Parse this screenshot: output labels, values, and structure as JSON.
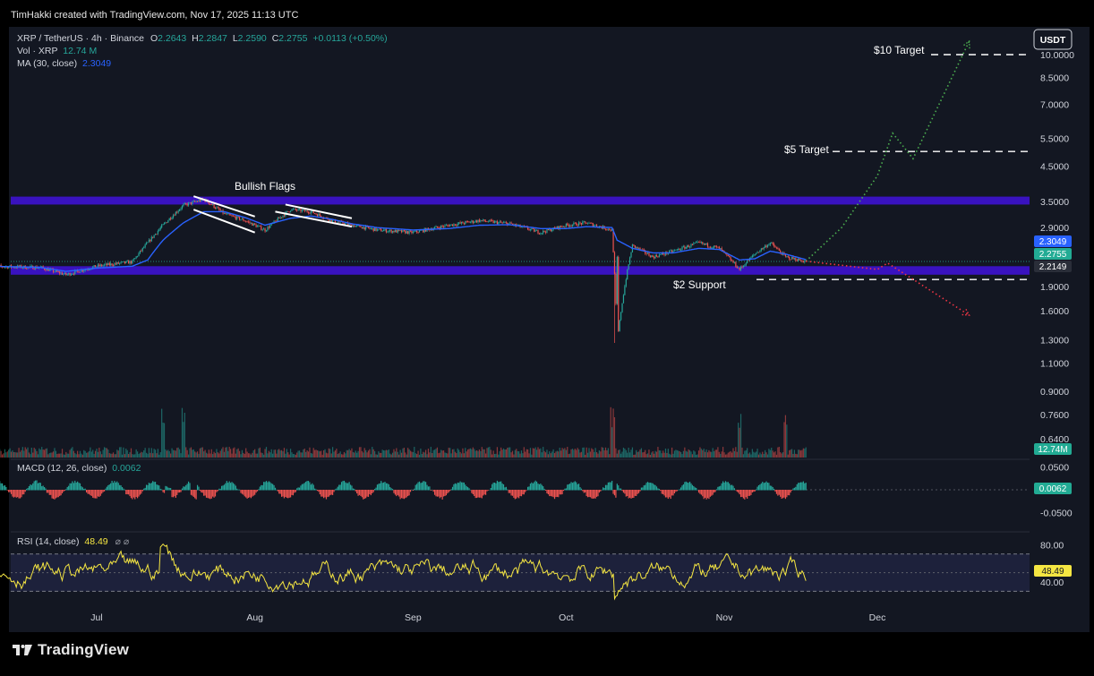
{
  "header": {
    "text": "TimHakki created with TradingView.com, Nov 17, 2025 11:13 UTC"
  },
  "brand": {
    "name": "TradingView"
  },
  "legend": {
    "symbol": "XRP / TetherUS · 4h · Binance",
    "o_label": "O",
    "o_value": "2.2643",
    "h_label": "H",
    "h_value": "2.2847",
    "l_label": "L",
    "l_value": "2.2590",
    "c_label": "C",
    "c_value": "2.2755",
    "change": "+0.0113 (+0.50%)",
    "vol_label": "Vol · XRP",
    "vol_value": "12.74 M",
    "ma_label": "MA (30, close)",
    "ma_value": "2.3049"
  },
  "annotations": {
    "bullish_flags": "Bullish Flags",
    "ten_target": "$10 Target",
    "five_target": "$5 Target",
    "support": "$2 Support"
  },
  "currency_button": "USDT",
  "price_badges": {
    "ma": "2.3049",
    "close": "2.2755",
    "level": "2.2149",
    "volume": "12.74M"
  },
  "macd": {
    "label": "MACD (12, 26, close)",
    "value": "0.0062"
  },
  "rsi": {
    "label": "RSI (14, close)",
    "value": "48.49"
  },
  "colors": {
    "background": "#131722",
    "zone": "#3b12c8",
    "up": "#26a69a",
    "down": "#ef5350",
    "ma_line": "#2962ff",
    "rsi_line": "#f5e642",
    "badge_ma": "#2962ff",
    "badge_close": "#22ab94",
    "green_projection": "#4caf50",
    "red_projection": "#f23645"
  },
  "chart_data": [
    {
      "type": "line",
      "name": "price",
      "title": "XRP / TetherUS · 4h · Binance",
      "x_ticks": [
        "Jul",
        "Aug",
        "Sep",
        "Oct",
        "Nov",
        "Dec"
      ],
      "y_scale": "log",
      "y_ticks": [
        "10.0000",
        "8.5000",
        "7.0000",
        "5.5000",
        "4.5000",
        "3.5000",
        "2.9000",
        "1.9000",
        "1.6000",
        "1.3000",
        "1.1000",
        "0.9000",
        "0.7600",
        "0.6400"
      ],
      "y_tick_values": [
        10.0,
        8.5,
        7.0,
        5.5,
        4.5,
        3.5,
        2.9,
        1.9,
        1.6,
        1.3,
        1.1,
        0.9,
        0.76,
        0.64
      ],
      "ylim": [
        0.6,
        11.5
      ],
      "dates": [
        "2025-06-10",
        "2025-06-20",
        "2025-06-25",
        "2025-07-01",
        "2025-07-08",
        "2025-07-11",
        "2025-07-14",
        "2025-07-18",
        "2025-07-22",
        "2025-07-26",
        "2025-07-30",
        "2025-08-03",
        "2025-08-08",
        "2025-08-12",
        "2025-08-16",
        "2025-08-20",
        "2025-08-25",
        "2025-09-01",
        "2025-09-08",
        "2025-09-14",
        "2025-09-20",
        "2025-09-26",
        "2025-10-01",
        "2025-10-05",
        "2025-10-10",
        "2025-10-11",
        "2025-10-14",
        "2025-10-18",
        "2025-10-22",
        "2025-10-27",
        "2025-10-31",
        "2025-11-04",
        "2025-11-07",
        "2025-11-10",
        "2025-11-13",
        "2025-11-17"
      ],
      "price": [
        2.2,
        2.18,
        2.07,
        2.2,
        2.27,
        2.6,
        2.95,
        3.4,
        3.55,
        3.2,
        3.05,
        2.85,
        3.3,
        3.25,
        3.05,
        2.95,
        2.85,
        2.8,
        2.95,
        3.05,
        2.98,
        2.8,
        2.95,
        3.0,
        2.85,
        1.27,
        2.55,
        2.35,
        2.45,
        2.6,
        2.5,
        2.15,
        2.4,
        2.6,
        2.35,
        2.2755
      ],
      "ma30": [
        2.2,
        2.18,
        2.12,
        2.17,
        2.2,
        2.3,
        2.65,
        3.0,
        3.25,
        3.25,
        3.12,
        2.95,
        3.1,
        3.15,
        3.08,
        2.98,
        2.9,
        2.85,
        2.88,
        2.95,
        2.96,
        2.88,
        2.88,
        2.92,
        2.9,
        2.65,
        2.5,
        2.42,
        2.42,
        2.5,
        2.48,
        2.3,
        2.32,
        2.45,
        2.4,
        2.3049
      ],
      "bullish_flags": [
        {
          "upper": [
            {
              "date": "2025-07-20",
              "price": 3.63
            },
            {
              "date": "2025-08-01",
              "price": 3.14
            }
          ],
          "lower": [
            {
              "date": "2025-07-20",
              "price": 3.3
            },
            {
              "date": "2025-08-01",
              "price": 2.8
            }
          ]
        },
        {
          "upper": [
            {
              "date": "2025-08-07",
              "price": 3.42
            },
            {
              "date": "2025-08-20",
              "price": 3.1
            }
          ],
          "lower": [
            {
              "date": "2025-08-05",
              "price": 3.25
            },
            {
              "date": "2025-08-20",
              "price": 2.92
            }
          ]
        }
      ],
      "resistance_zone": [
        3.42,
        3.62
      ],
      "support_zone": [
        2.07,
        2.2
      ],
      "current_price_line": 2.2755,
      "level_2_2149": 2.2149,
      "ten_target": 10.0,
      "five_target": 5.0,
      "support_level": 2.0,
      "bullish_projection": [
        {
          "date": "2025-11-17",
          "price": 2.28
        },
        {
          "date": "2025-11-24",
          "price": 2.9
        },
        {
          "date": "2025-12-01",
          "price": 4.2
        },
        {
          "date": "2025-12-04",
          "price": 5.7
        },
        {
          "date": "2025-12-08",
          "price": 4.75
        },
        {
          "date": "2025-12-19",
          "price": 11.0
        }
      ],
      "bearish_projection": [
        {
          "date": "2025-11-17",
          "price": 2.28
        },
        {
          "date": "2025-12-01",
          "price": 2.15
        },
        {
          "date": "2025-12-03",
          "price": 2.25
        },
        {
          "date": "2025-12-19",
          "price": 1.55
        }
      ]
    },
    {
      "type": "bar",
      "name": "volume",
      "title": "Vol · XRP",
      "last_value": 12.74,
      "spike_dates": [
        "2025-07-14",
        "2025-07-18",
        "2025-10-10",
        "2025-11-04",
        "2025-11-13"
      ]
    },
    {
      "type": "bar",
      "name": "macd",
      "title": "MACD (12, 26, close)",
      "y_ticks": [
        "0.0500",
        "0.0062",
        "-0.0500"
      ],
      "ylim": [
        -0.065,
        0.065
      ],
      "last_value": 0.0062
    },
    {
      "type": "line",
      "name": "rsi",
      "title": "RSI (14, close)",
      "y_ticks": [
        "80.00",
        "40.00"
      ],
      "bands": [
        70,
        30
      ],
      "ylim": [
        15,
        90
      ],
      "last_value": 48.49
    }
  ]
}
